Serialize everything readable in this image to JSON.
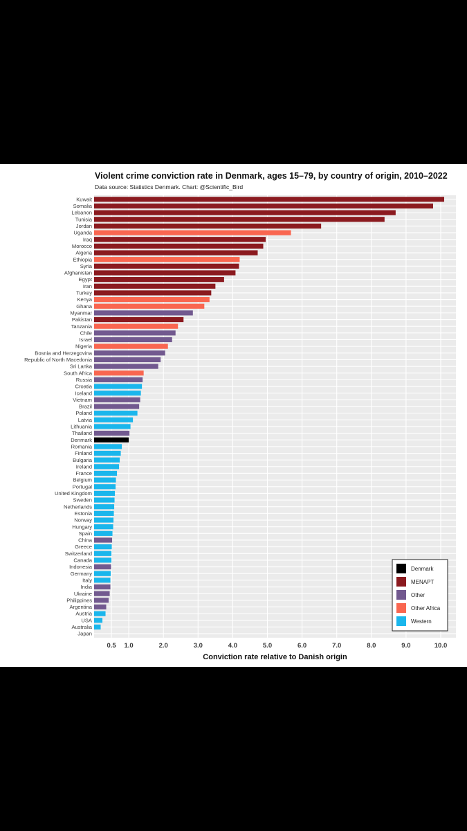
{
  "colors": {
    "Denmark": "#000000",
    "MENAPT": "#8b1a1f",
    "Other": "#72598f",
    "Other Africa": "#f96650",
    "Western": "#1ab6ec",
    "panel": "#ebebeb",
    "grid": "#ffffff"
  },
  "chart_data": {
    "type": "bar",
    "orientation": "horizontal",
    "title": "Violent crime conviction rate in Denmark, ages 15–79, by country of origin, 2010–2022",
    "subtitle": "Data source: Statistics Denmark. Chart: @Scientific_Bird",
    "xlabel": "Conviction rate relative to Danish origin",
    "xlim": [
      0,
      10.2
    ],
    "xticks": [
      0.5,
      1.0,
      2.0,
      3.0,
      4.0,
      5.0,
      6.0,
      7.0,
      8.0,
      9.0,
      10.0
    ],
    "xtick_labels": [
      "0.5",
      "1.0",
      "2.0",
      "3.0",
      "4.0",
      "5.0",
      "6.0",
      "7.0",
      "8.0",
      "9.0",
      "10.0"
    ],
    "grid": true,
    "legend_position": "bottom-right",
    "legend": [
      "Denmark",
      "MENAPT",
      "Other",
      "Other Africa",
      "Western"
    ],
    "bars": [
      {
        "country": "Kuwait",
        "value": 10.1,
        "group": "MENAPT"
      },
      {
        "country": "Somalia",
        "value": 9.78,
        "group": "MENAPT"
      },
      {
        "country": "Lebanon",
        "value": 8.7,
        "group": "MENAPT"
      },
      {
        "country": "Tunisia",
        "value": 8.38,
        "group": "MENAPT"
      },
      {
        "country": "Jordan",
        "value": 6.55,
        "group": "MENAPT"
      },
      {
        "country": "Uganda",
        "value": 5.68,
        "group": "Other Africa"
      },
      {
        "country": "Iraq",
        "value": 4.95,
        "group": "MENAPT"
      },
      {
        "country": "Morocco",
        "value": 4.88,
        "group": "MENAPT"
      },
      {
        "country": "Algeria",
        "value": 4.72,
        "group": "MENAPT"
      },
      {
        "country": "Ethiopia",
        "value": 4.2,
        "group": "Other Africa"
      },
      {
        "country": "Syria",
        "value": 4.18,
        "group": "MENAPT"
      },
      {
        "country": "Afghanistan",
        "value": 4.08,
        "group": "MENAPT"
      },
      {
        "country": "Egypt",
        "value": 3.75,
        "group": "MENAPT"
      },
      {
        "country": "Iran",
        "value": 3.5,
        "group": "MENAPT"
      },
      {
        "country": "Turkey",
        "value": 3.38,
        "group": "MENAPT"
      },
      {
        "country": "Kenya",
        "value": 3.33,
        "group": "Other Africa"
      },
      {
        "country": "Ghana",
        "value": 3.18,
        "group": "Other Africa"
      },
      {
        "country": "Myanmar",
        "value": 2.85,
        "group": "Other"
      },
      {
        "country": "Pakistan",
        "value": 2.58,
        "group": "MENAPT"
      },
      {
        "country": "Tanzania",
        "value": 2.42,
        "group": "Other Africa"
      },
      {
        "country": "Chile",
        "value": 2.35,
        "group": "Other"
      },
      {
        "country": "Israel",
        "value": 2.25,
        "group": "Other"
      },
      {
        "country": "Nigeria",
        "value": 2.13,
        "group": "Other Africa"
      },
      {
        "country": "Bosnia and Herzegovina",
        "value": 2.05,
        "group": "Other"
      },
      {
        "country": "Republic of North Macedonia",
        "value": 1.92,
        "group": "Other"
      },
      {
        "country": "Sri Lanka",
        "value": 1.85,
        "group": "Other"
      },
      {
        "country": "South Africa",
        "value": 1.43,
        "group": "Other Africa"
      },
      {
        "country": "Russia",
        "value": 1.4,
        "group": "Other"
      },
      {
        "country": "Croatia",
        "value": 1.38,
        "group": "Western"
      },
      {
        "country": "Iceland",
        "value": 1.35,
        "group": "Western"
      },
      {
        "country": "Vietnam",
        "value": 1.33,
        "group": "Other"
      },
      {
        "country": "Brazil",
        "value": 1.3,
        "group": "Other"
      },
      {
        "country": "Poland",
        "value": 1.25,
        "group": "Western"
      },
      {
        "country": "Latvia",
        "value": 1.12,
        "group": "Western"
      },
      {
        "country": "Lithuania",
        "value": 1.05,
        "group": "Western"
      },
      {
        "country": "Thailand",
        "value": 1.02,
        "group": "Other"
      },
      {
        "country": "Denmark",
        "value": 1.0,
        "group": "Denmark"
      },
      {
        "country": "Romania",
        "value": 0.8,
        "group": "Western"
      },
      {
        "country": "Finland",
        "value": 0.77,
        "group": "Western"
      },
      {
        "country": "Bulgaria",
        "value": 0.74,
        "group": "Western"
      },
      {
        "country": "Ireland",
        "value": 0.72,
        "group": "Western"
      },
      {
        "country": "France",
        "value": 0.66,
        "group": "Western"
      },
      {
        "country": "Belgium",
        "value": 0.63,
        "group": "Western"
      },
      {
        "country": "Portugal",
        "value": 0.62,
        "group": "Western"
      },
      {
        "country": "United Kingdom",
        "value": 0.6,
        "group": "Western"
      },
      {
        "country": "Sweden",
        "value": 0.59,
        "group": "Western"
      },
      {
        "country": "Netherlands",
        "value": 0.58,
        "group": "Western"
      },
      {
        "country": "Estonia",
        "value": 0.57,
        "group": "Western"
      },
      {
        "country": "Norway",
        "value": 0.56,
        "group": "Western"
      },
      {
        "country": "Hungary",
        "value": 0.55,
        "group": "Western"
      },
      {
        "country": "Spain",
        "value": 0.53,
        "group": "Western"
      },
      {
        "country": "China",
        "value": 0.52,
        "group": "Other"
      },
      {
        "country": "Greece",
        "value": 0.51,
        "group": "Western"
      },
      {
        "country": "Switzerland",
        "value": 0.5,
        "group": "Western"
      },
      {
        "country": "Canada",
        "value": 0.5,
        "group": "Western"
      },
      {
        "country": "Indonesia",
        "value": 0.49,
        "group": "Other"
      },
      {
        "country": "Germany",
        "value": 0.48,
        "group": "Western"
      },
      {
        "country": "Italy",
        "value": 0.47,
        "group": "Western"
      },
      {
        "country": "India",
        "value": 0.47,
        "group": "Other"
      },
      {
        "country": "Ukraine",
        "value": 0.45,
        "group": "Other"
      },
      {
        "country": "Philippines",
        "value": 0.42,
        "group": "Other"
      },
      {
        "country": "Argentina",
        "value": 0.35,
        "group": "Other"
      },
      {
        "country": "Austria",
        "value": 0.33,
        "group": "Western"
      },
      {
        "country": "USA",
        "value": 0.24,
        "group": "Western"
      },
      {
        "country": "Australia",
        "value": 0.19,
        "group": "Western"
      },
      {
        "country": "Japan",
        "value": 0.0,
        "group": "Other"
      }
    ]
  }
}
